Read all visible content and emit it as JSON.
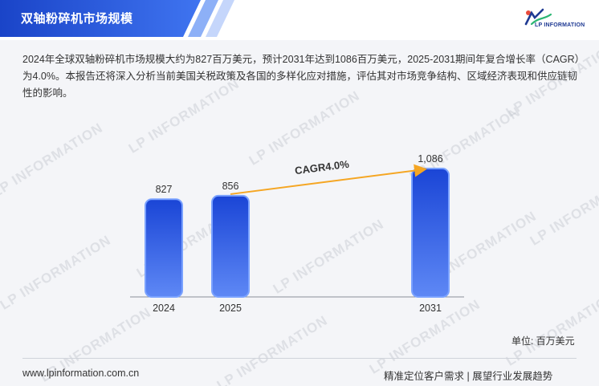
{
  "header": {
    "title": "双轴粉碎机市场规模",
    "logo_text": "LP INFORMATION"
  },
  "description": "2024年全球双轴粉碎机市场规模大约为827百万美元，预计2031年达到1086百万美元，2025-2031期间年复合增长率（CAGR）为4.0%。本报告还将深入分析当前美国关税政策及各国的多样化应对措施，评估其对市场竞争结构、区域经济表现和供应链韧性的影响。",
  "watermark_text": "LP INFORMATION",
  "chart_data": {
    "type": "bar",
    "categories": [
      "2024",
      "2025",
      "2031"
    ],
    "values": [
      827,
      856,
      1086
    ],
    "value_labels": [
      "827",
      "856",
      "1,086"
    ],
    "annotation": "CAGR4.0%",
    "unit_label": "单位: 百万美元",
    "ylim": [
      0,
      1100
    ],
    "colors": {
      "bar_top": "#1a45d6",
      "bar_bottom": "#5e88f5",
      "arrow": "#f5a623"
    }
  },
  "footer": {
    "url": "www.lpinformation.com.cn",
    "slogan": "精准定位客户需求 | 展望行业发展趋势"
  }
}
